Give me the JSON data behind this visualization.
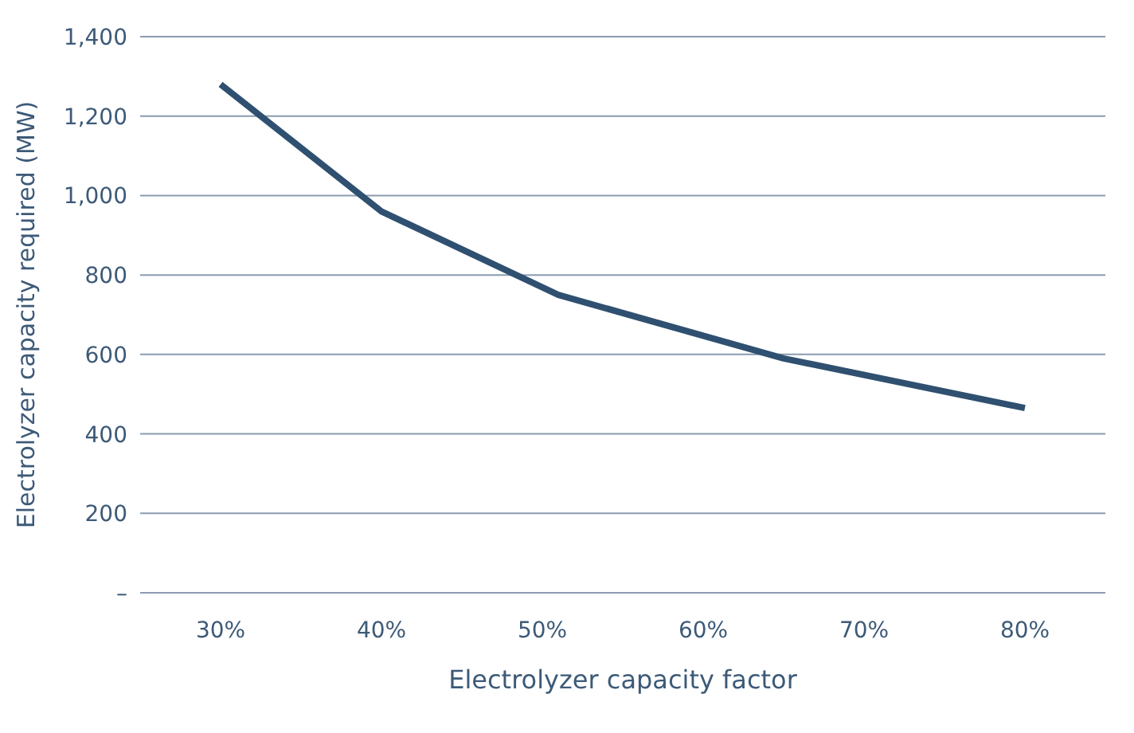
{
  "chart_data": {
    "type": "line",
    "xlabel": "Electrolyzer capacity factor",
    "ylabel": "Electrolyzer capacity required (MW)",
    "x": [
      30,
      40,
      51,
      65,
      80
    ],
    "series": [
      {
        "color": "#2f5070",
        "values": [
          1280,
          960,
          750,
          590,
          465
        ]
      }
    ],
    "xlim": [
      25,
      85
    ],
    "xticks": [
      {
        "value": 30,
        "label": "30%"
      },
      {
        "value": 40,
        "label": "40%"
      },
      {
        "value": 50,
        "label": "50%"
      },
      {
        "value": 60,
        "label": "60%"
      },
      {
        "value": 70,
        "label": "70%"
      },
      {
        "value": 80,
        "label": "80%"
      }
    ],
    "ylim": [
      0,
      1400
    ],
    "yticks": [
      {
        "value": 0,
        "label": "–"
      },
      {
        "value": 200,
        "label": "200"
      },
      {
        "value": 400,
        "label": "400"
      },
      {
        "value": 600,
        "label": "600"
      },
      {
        "value": 800,
        "label": "800"
      },
      {
        "value": 1000,
        "label": "1,000"
      },
      {
        "value": 1200,
        "label": "1,200"
      },
      {
        "value": 1400,
        "label": "1,400"
      }
    ],
    "grid": "y",
    "legend": false,
    "marker": "none",
    "line_style": "solid"
  }
}
